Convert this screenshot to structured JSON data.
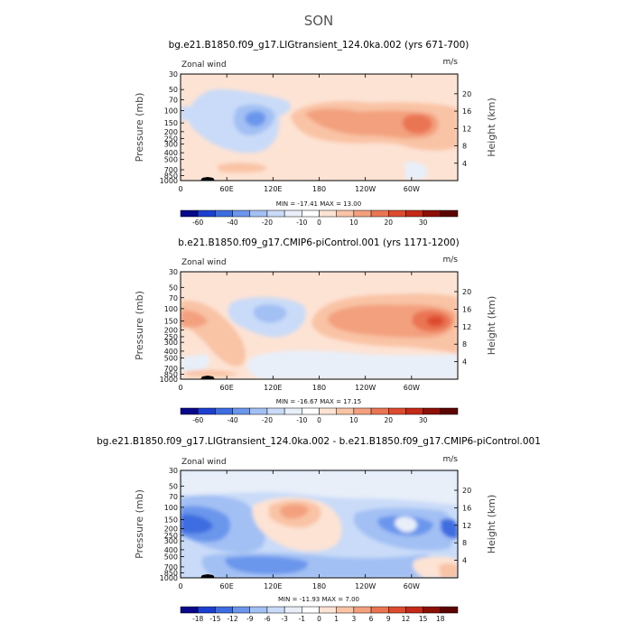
{
  "figure": {
    "suptitle": "SON"
  },
  "colors": {
    "wind_scale": [
      "#08088a",
      "#1d3fd0",
      "#3d6de0",
      "#6b96ec",
      "#a2c0f4",
      "#c9dbf8",
      "#e8eff9",
      "#ffffff",
      "#fde3d4",
      "#f9c3a5",
      "#f3a07e",
      "#ea7553",
      "#dd4b2e",
      "#c42a18",
      "#8c1006",
      "#5c0400"
    ],
    "diff_scale": [
      "#08088a",
      "#1d3fd0",
      "#3d6de0",
      "#6b96ec",
      "#a2c0f4",
      "#c9dbf8",
      "#e8eff9",
      "#ffffff",
      "#fde3d4",
      "#f9c3a5",
      "#f3a07e",
      "#ea7553",
      "#dd4b2e",
      "#c42a18",
      "#8c1006",
      "#5c0400"
    ],
    "topography": "#000000"
  },
  "chart_data": [
    {
      "type": "heatmap",
      "title": "bg.e21.B1850.f09_g17.LIGtransient_124.0ka.002 (yrs 671-700)",
      "variable": "Zonal wind",
      "units": "m/s",
      "xlabel": "",
      "ylabel": "Pressure (mb)",
      "ylabel_right": "Height (km)",
      "x_ticks": [
        "0",
        "60E",
        "120E",
        "180",
        "120W",
        "60W"
      ],
      "y_ticks": [
        "30",
        "50",
        "70",
        "100",
        "150",
        "200",
        "250",
        "300",
        "400",
        "500",
        "700",
        "850",
        "1000"
      ],
      "y_ticks_right": [
        "20",
        "16",
        "12",
        "8",
        "4"
      ],
      "xlim": [
        0,
        360
      ],
      "ylim": [
        1000,
        30
      ],
      "min_max_text": "MIN = -17.41   MAX =  13.00",
      "min": -17.41,
      "max": 13.0,
      "colorbar_labels": [
        "-60",
        "-40",
        "-20",
        "-10",
        "0",
        "10",
        "20",
        "30"
      ],
      "colorbar_levels": [
        -60,
        -50,
        -40,
        -30,
        -20,
        -15,
        -10,
        -5,
        0,
        5,
        10,
        15,
        20,
        25,
        30
      ]
    },
    {
      "type": "heatmap",
      "title": "b.e21.B1850.f09_g17.CMIP6-piControl.001 (yrs 1171-1200)",
      "variable": "Zonal wind",
      "units": "m/s",
      "xlabel": "",
      "ylabel": "Pressure (mb)",
      "ylabel_right": "Height (km)",
      "x_ticks": [
        "0",
        "60E",
        "120E",
        "180",
        "120W",
        "60W"
      ],
      "y_ticks": [
        "30",
        "50",
        "70",
        "100",
        "150",
        "200",
        "250",
        "300",
        "400",
        "500",
        "700",
        "850",
        "1000"
      ],
      "y_ticks_right": [
        "20",
        "16",
        "12",
        "8",
        "4"
      ],
      "xlim": [
        0,
        360
      ],
      "ylim": [
        1000,
        30
      ],
      "min_max_text": "MIN = -16.67   MAX =  17.15",
      "min": -16.67,
      "max": 17.15,
      "colorbar_labels": [
        "-60",
        "-40",
        "-20",
        "-10",
        "0",
        "10",
        "20",
        "30"
      ],
      "colorbar_levels": [
        -60,
        -50,
        -40,
        -30,
        -20,
        -15,
        -10,
        -5,
        0,
        5,
        10,
        15,
        20,
        25,
        30
      ]
    },
    {
      "type": "heatmap",
      "title": "bg.e21.B1850.f09_g17.LIGtransient_124.0ka.002 - b.e21.B1850.f09_g17.CMIP6-piControl.001",
      "variable": "Zonal wind",
      "units": "m/s",
      "xlabel": "",
      "ylabel": "Pressure (mb)",
      "ylabel_right": "Height (km)",
      "x_ticks": [
        "0",
        "60E",
        "120E",
        "180",
        "120W",
        "60W"
      ],
      "y_ticks": [
        "30",
        "50",
        "70",
        "100",
        "150",
        "200",
        "250",
        "300",
        "400",
        "500",
        "700",
        "850",
        "1000"
      ],
      "y_ticks_right": [
        "20",
        "16",
        "12",
        "8",
        "4"
      ],
      "xlim": [
        0,
        360
      ],
      "ylim": [
        1000,
        30
      ],
      "min_max_text": "MIN = -11.93   MAX =   7.00",
      "min": -11.93,
      "max": 7.0,
      "colorbar_labels": [
        "-18",
        "-15",
        "-12",
        "-9",
        "-6",
        "-3",
        "-1",
        "0",
        "1",
        "3",
        "6",
        "9",
        "12",
        "15",
        "18"
      ],
      "colorbar_levels": [
        -18,
        -15,
        -12,
        -9,
        -6,
        -3,
        -1,
        0,
        1,
        3,
        6,
        9,
        12,
        15,
        18
      ]
    }
  ]
}
